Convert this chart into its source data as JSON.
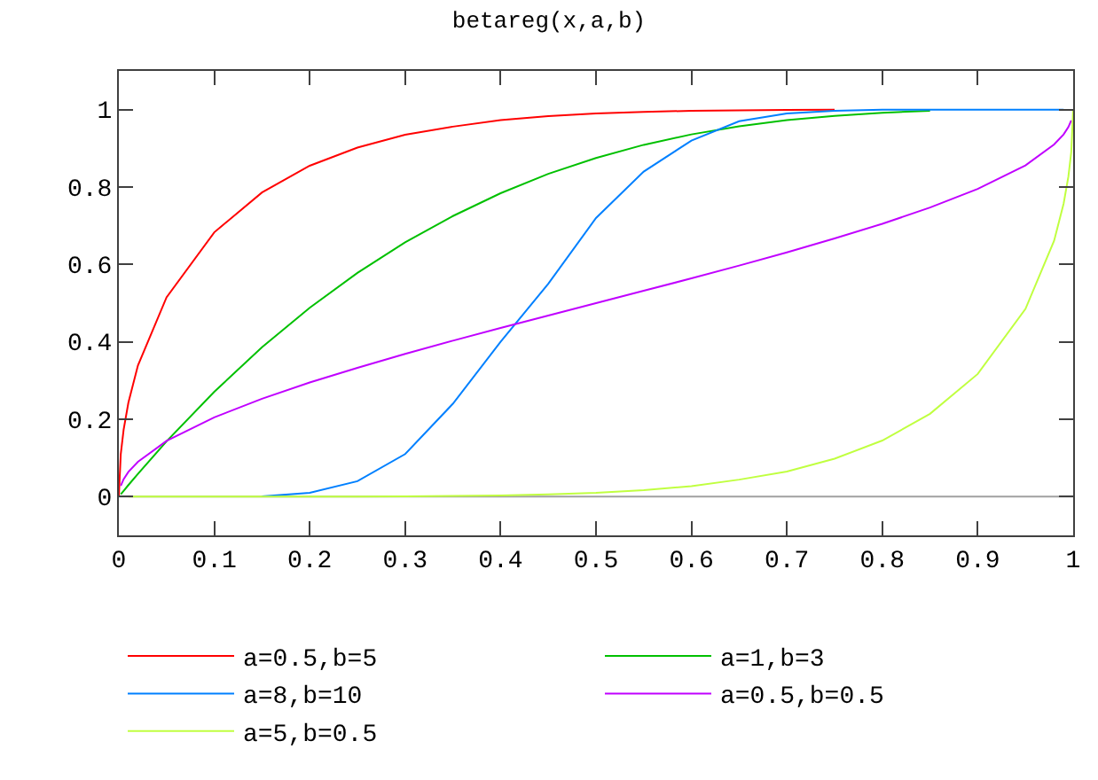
{
  "chart_data": {
    "type": "line",
    "title": "betareg(x,a,b)",
    "x": [
      0,
      0.002,
      0.005,
      0.01,
      0.02,
      0.05,
      0.1,
      0.15,
      0.2,
      0.25,
      0.3,
      0.35,
      0.4,
      0.45,
      0.5,
      0.55,
      0.6,
      0.65,
      0.7,
      0.75,
      0.8,
      0.85,
      0.9,
      0.95,
      0.98,
      0.99,
      0.995,
      0.998,
      1
    ],
    "series": [
      {
        "name": "a=0.5,b=5",
        "color": "#ff0000",
        "values": [
          0,
          0.11,
          0.173,
          0.243,
          0.339,
          0.515,
          0.683,
          0.786,
          0.855,
          0.902,
          0.935,
          0.956,
          0.973,
          0.983,
          0.99,
          0.994,
          0.997,
          0.998,
          0.999,
          1,
          null,
          null,
          null,
          null,
          null,
          null,
          null,
          null,
          null
        ]
      },
      {
        "name": "a=1,b=3",
        "color": "#00c000",
        "values": [
          null,
          0.006,
          0.015,
          0.03,
          0.059,
          0.143,
          0.271,
          0.386,
          0.488,
          0.578,
          0.657,
          0.725,
          0.784,
          0.834,
          0.875,
          0.909,
          0.936,
          0.957,
          0.973,
          0.984,
          0.992,
          0.997,
          null,
          null,
          null,
          null,
          null,
          null,
          null
        ]
      },
      {
        "name": "a=8,b=10",
        "color": "#0080ff",
        "values": [
          null,
          null,
          null,
          null,
          null,
          null,
          null,
          0.001,
          0.01,
          0.04,
          0.11,
          0.24,
          0.4,
          0.55,
          0.72,
          0.84,
          0.92,
          0.97,
          0.99,
          0.997,
          1,
          1,
          1,
          1,
          1,
          1,
          null,
          null,
          null
        ]
      },
      {
        "name": "a=0.5,b=0.5",
        "color": "#c000ff",
        "values": [
          null,
          0.028,
          0.045,
          0.064,
          0.09,
          0.144,
          0.205,
          0.253,
          0.295,
          0.333,
          0.369,
          0.403,
          0.436,
          0.468,
          0.5,
          0.532,
          0.564,
          0.597,
          0.631,
          0.667,
          0.705,
          0.747,
          0.795,
          0.856,
          0.91,
          0.936,
          0.955,
          0.972,
          null
        ]
      },
      {
        "name": "a=5,b=0.5",
        "color": "#c0ff40",
        "values": [
          null,
          null,
          null,
          0,
          0,
          0,
          0,
          0,
          0,
          0,
          0.001,
          0.002,
          0.003,
          0.006,
          0.01,
          0.017,
          0.027,
          0.044,
          0.065,
          0.098,
          0.145,
          0.214,
          0.317,
          0.485,
          0.661,
          0.757,
          0.827,
          0.89,
          1
        ]
      }
    ],
    "xlim": [
      0,
      1
    ],
    "ylim": [
      -0.1,
      1.1
    ],
    "xticks": [
      0,
      0.1,
      0.2,
      0.3,
      0.4,
      0.5,
      0.6,
      0.7,
      0.8,
      0.9,
      1
    ],
    "yticks": [
      0,
      0.2,
      0.4,
      0.6,
      0.8,
      1
    ],
    "ref_lines": [
      {
        "axis": "y",
        "value": 0,
        "color": "#a0a0a0"
      }
    ],
    "grid": false,
    "legend": "bottom",
    "marker": "none",
    "line_style": "solid"
  }
}
